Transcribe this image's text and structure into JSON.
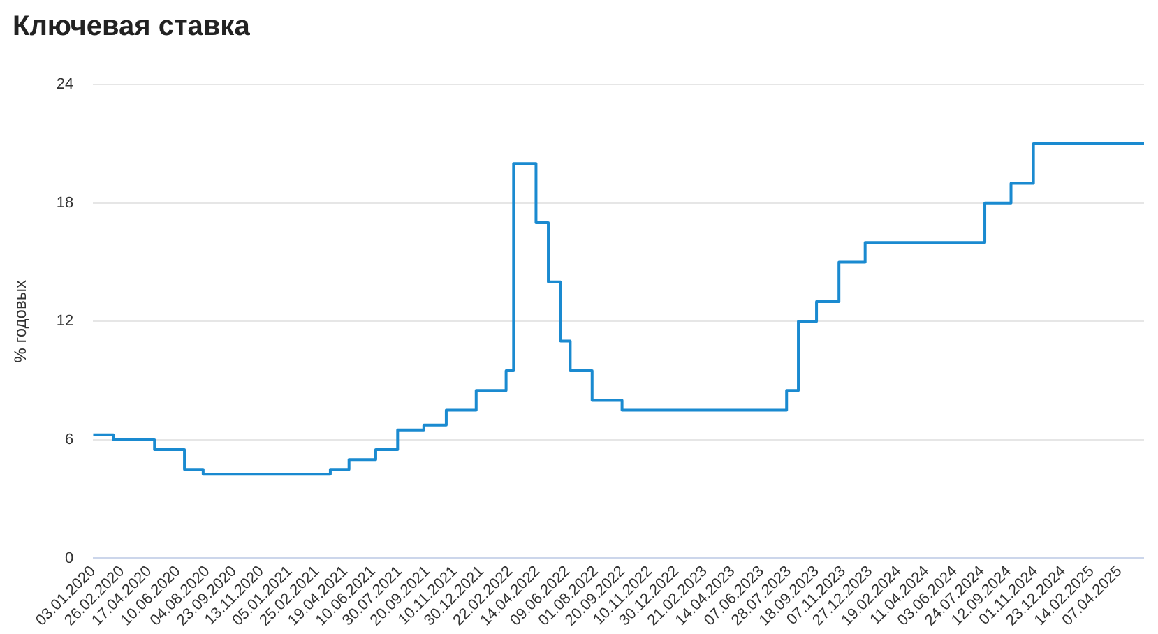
{
  "chart_data": {
    "type": "step",
    "title": "Ключевая ставка",
    "ylabel": "% годовых",
    "x": [
      "2020-01-03",
      "2020-02-10",
      "2020-04-27",
      "2020-06-22",
      "2020-07-27",
      "2021-03-22",
      "2021-04-26",
      "2021-06-15",
      "2021-07-26",
      "2021-09-13",
      "2021-10-25",
      "2021-12-20",
      "2022-02-14",
      "2022-02-28",
      "2022-04-11",
      "2022-05-04",
      "2022-05-27",
      "2022-06-14",
      "2022-07-25",
      "2022-09-19",
      "2023-07-24",
      "2023-08-15",
      "2023-09-18",
      "2023-10-30",
      "2023-12-18",
      "2024-07-29",
      "2024-09-16",
      "2024-10-28",
      "2025-05-23"
    ],
    "series": [
      {
        "color": "#1a8ad0",
        "values": [
          6.25,
          6,
          5.5,
          4.5,
          4.25,
          4.5,
          5,
          5.5,
          6.5,
          6.75,
          7.5,
          8.5,
          9.5,
          20,
          17,
          14,
          11,
          9.5,
          8,
          7.5,
          8.5,
          12,
          13,
          15,
          16,
          18,
          19,
          21,
          21
        ]
      }
    ],
    "xlim": [
      "2020-01-03",
      "2025-05-23"
    ],
    "xticks": [
      {
        "value": "2020-01-03",
        "label": "03.01.2020"
      },
      {
        "value": "2020-02-26",
        "label": "26.02.2020"
      },
      {
        "value": "2020-04-17",
        "label": "17.04.2020"
      },
      {
        "value": "2020-06-10",
        "label": "10.06.2020"
      },
      {
        "value": "2020-08-04",
        "label": "04.08.2020"
      },
      {
        "value": "2020-09-23",
        "label": "23.09.2020"
      },
      {
        "value": "2020-11-13",
        "label": "13.11.2020"
      },
      {
        "value": "2021-01-05",
        "label": "05.01.2021"
      },
      {
        "value": "2021-02-25",
        "label": "25.02.2021"
      },
      {
        "value": "2021-04-19",
        "label": "19.04.2021"
      },
      {
        "value": "2021-06-10",
        "label": "10.06.2021"
      },
      {
        "value": "2021-07-30",
        "label": "30.07.2021"
      },
      {
        "value": "2021-09-20",
        "label": "20.09.2021"
      },
      {
        "value": "2021-11-10",
        "label": "10.11.2021"
      },
      {
        "value": "2021-12-30",
        "label": "30.12.2021"
      },
      {
        "value": "2022-02-22",
        "label": "22.02.2022"
      },
      {
        "value": "2022-04-14",
        "label": "14.04.2022"
      },
      {
        "value": "2022-06-09",
        "label": "09.06.2022"
      },
      {
        "value": "2022-08-01",
        "label": "01.08.2022"
      },
      {
        "value": "2022-09-20",
        "label": "20.09.2022"
      },
      {
        "value": "2022-11-10",
        "label": "10.11.2022"
      },
      {
        "value": "2022-12-30",
        "label": "30.12.2022"
      },
      {
        "value": "2023-02-21",
        "label": "21.02.2023"
      },
      {
        "value": "2023-04-14",
        "label": "14.04.2023"
      },
      {
        "value": "2023-06-07",
        "label": "07.06.2023"
      },
      {
        "value": "2023-07-28",
        "label": "28.07.2023"
      },
      {
        "value": "2023-09-18",
        "label": "18.09.2023"
      },
      {
        "value": "2023-11-07",
        "label": "07.11.2023"
      },
      {
        "value": "2023-12-27",
        "label": "27.12.2023"
      },
      {
        "value": "2024-02-19",
        "label": "19.02.2024"
      },
      {
        "value": "2024-04-11",
        "label": "11.04.2024"
      },
      {
        "value": "2024-06-03",
        "label": "03.06.2024"
      },
      {
        "value": "2024-07-24",
        "label": "24.07.2024"
      },
      {
        "value": "2024-09-12",
        "label": "12.09.2024"
      },
      {
        "value": "2024-11-01",
        "label": "01.11.2024"
      },
      {
        "value": "2024-12-23",
        "label": "23.12.2024"
      },
      {
        "value": "2025-02-14",
        "label": "14.02.2025"
      },
      {
        "value": "2025-04-07",
        "label": "07.04.2025"
      }
    ],
    "ylim": [
      0,
      24
    ],
    "yticks": [
      0,
      6,
      12,
      18,
      24
    ],
    "grid": "y",
    "legend": false
  }
}
